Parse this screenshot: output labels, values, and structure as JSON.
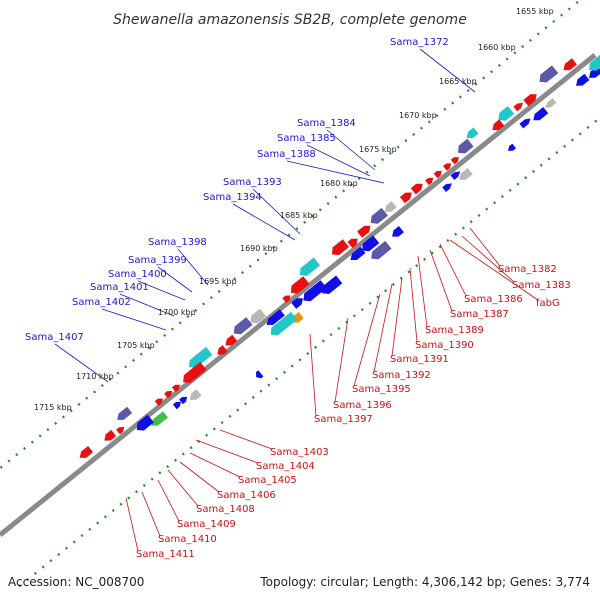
{
  "title": "Shewanella amazonensis SB2B, complete genome",
  "footer": {
    "accession": "Accession: NC_008700",
    "summary": "Topology: circular; Length: 4,306,142 bp; Genes: 3,774"
  },
  "ticks": [
    "1655 kbp",
    "1660 kbp",
    "1665 kbp",
    "1670 kbp",
    "1675 kbp",
    "1680 kbp",
    "1685 kbp",
    "1690 kbp",
    "1695 kbp",
    "1700 kbp",
    "1705 kbp",
    "1710 kbp",
    "1715 kbp"
  ],
  "blue_labels": [
    "Sama_1372",
    "Sama_1384",
    "Sama_1385",
    "Sama_1388",
    "Sama_1393",
    "Sama_1394",
    "Sama_1398",
    "Sama_1399",
    "Sama_1400",
    "Sama_1401",
    "Sama_1402",
    "Sama_1407"
  ],
  "red_labels": [
    "Sama_1382",
    "Sama_1383",
    "fabG",
    "Sama_1386",
    "Sama_1387",
    "Sama_1389",
    "Sama_1390",
    "Sama_1391",
    "Sama_1392",
    "Sama_1395",
    "Sama_1396",
    "Sama_1397",
    "Sama_1403",
    "Sama_1404",
    "Sama_1405",
    "Sama_1406",
    "Sama_1408",
    "Sama_1409",
    "Sama_1410",
    "Sama_1411"
  ],
  "colors": {
    "backbone": "#8a8a8a",
    "tick_dots": "#2e8b2e",
    "label_blue": "#1a1acc",
    "label_red": "#cc1111",
    "gene_forward": "#1010e6",
    "gene_reverse": "#e81010",
    "gene_cyan": "#20c8c8",
    "gene_purple": "#5a5aa8",
    "gene_gray": "#b8b8b8",
    "gene_orange": "#f0900a",
    "gene_green": "#40c040"
  }
}
